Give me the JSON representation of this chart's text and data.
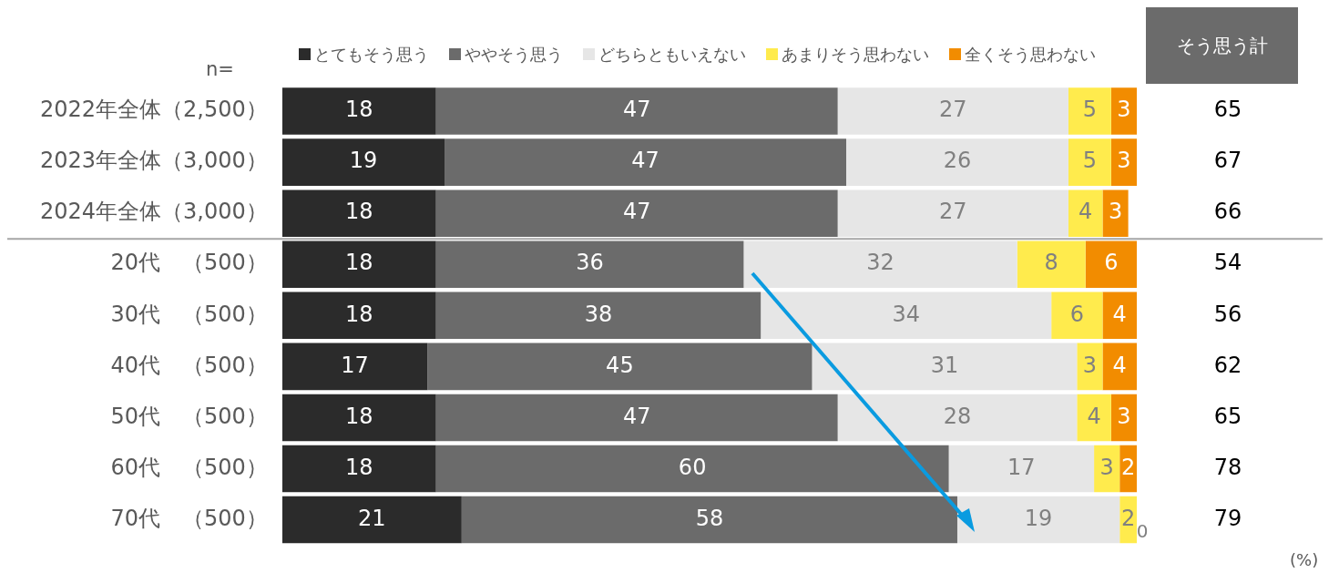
{
  "chart_data": {
    "type": "bar",
    "orientation": "horizontal",
    "stacked": true,
    "data_labels": true,
    "grid": false,
    "legend": "top",
    "tick_labels": "y",
    "xlim": [
      0,
      100
    ],
    "categories": [
      "2022年全体（2,500）",
      "2023年全体（3,000）",
      "2024年全体（3,000）",
      "20代　（500）",
      "30代　（500）",
      "40代　（500）",
      "50代　（500）",
      "60代　（500）",
      "70代　（500）"
    ],
    "series": [
      {
        "name": "とてもそう思う",
        "color": "#2b2b2b",
        "values": [
          18,
          19,
          18,
          18,
          18,
          17,
          18,
          18,
          21
        ]
      },
      {
        "name": "ややそう思う",
        "color": "#6b6b6b",
        "values": [
          47,
          47,
          47,
          36,
          38,
          45,
          47,
          60,
          58
        ]
      },
      {
        "name": "どちらともいえない",
        "color": "#e6e6e6",
        "values": [
          27,
          26,
          27,
          32,
          34,
          31,
          28,
          17,
          19
        ]
      },
      {
        "name": "あまりそう思わない",
        "color": "#ffeb4d",
        "values": [
          5,
          5,
          4,
          8,
          6,
          3,
          4,
          3,
          2
        ]
      },
      {
        "name": "全くそう思わない",
        "color": "#f28c00",
        "values": [
          3,
          3,
          3,
          6,
          4,
          4,
          3,
          2,
          0
        ]
      }
    ],
    "annotations": [
      "n=",
      "そう思う計",
      "65",
      "67",
      "66",
      "54",
      "56",
      "62",
      "65",
      "78",
      "79",
      "(%)"
    ]
  }
}
